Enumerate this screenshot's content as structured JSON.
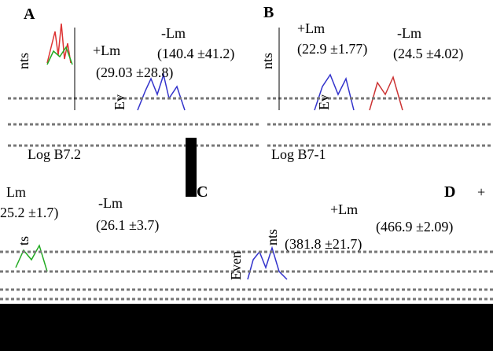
{
  "panels": [
    {
      "letter": "A",
      "texts": [
        "+Lm",
        "-Lm",
        "(140.4 ±41.2)",
        "(29.03 ±28.8)",
        "nts",
        "Ev"
      ],
      "axis_label": "Log B7.2"
    },
    {
      "letter": "B",
      "texts": [
        "+Lm",
        "(22.9 ±1.77)",
        "-Lm",
        "(24.5 ±4.02)",
        "nts",
        "Ev"
      ],
      "axis_label": "Log B7-1"
    },
    {
      "letter": "",
      "texts": [
        "Lm",
        "25.2 ±1.7)",
        "-Lm",
        "(26.1 ±3.7)",
        "ts"
      ],
      "axis_label": ""
    },
    {
      "letter": "C",
      "texts": [
        "+Lm",
        "(466.9 ±2.09)",
        "(381.8 ±21.7)",
        "Even",
        "nts"
      ],
      "axis_label": ""
    },
    {
      "letter": "D",
      "texts": [
        "+"
      ],
      "axis_label": ""
    }
  ]
}
